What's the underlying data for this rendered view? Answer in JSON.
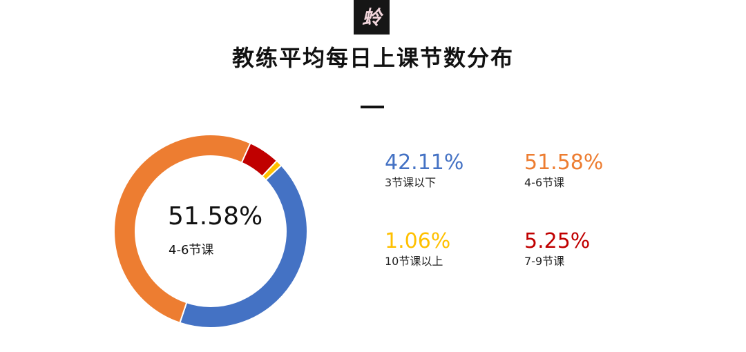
{
  "title": "教练平均每日上课节数分布",
  "logo": {
    "icon": "brush-calligraphy-logo-icon",
    "glyph": "蛉",
    "background": "#161616",
    "glyph_color": "#f2d6dc"
  },
  "center": {
    "percent": "51.58%",
    "label": "4-6节课"
  },
  "legend": [
    {
      "percent": "42.11%",
      "label": "3节课以下",
      "color": "#4472C4"
    },
    {
      "percent": "51.58%",
      "label": "4-6节课",
      "color": "#ED7D31"
    },
    {
      "percent": "1.06%",
      "label": "10节课以上",
      "color": "#FFC000"
    },
    {
      "percent": "5.25%",
      "label": "7-9节课",
      "color": "#C00000"
    }
  ],
  "chart_data": {
    "type": "pie",
    "variant": "donut",
    "title": "教练平均每日上课节数分布",
    "slices": [
      {
        "name": "3节课以下",
        "value": 42.11,
        "color": "#4472C4"
      },
      {
        "name": "4-6节课",
        "value": 51.58,
        "color": "#ED7D31"
      },
      {
        "name": "7-9节课",
        "value": 5.25,
        "color": "#C00000"
      },
      {
        "name": "10节课以上",
        "value": 1.06,
        "color": "#FFC000"
      }
    ],
    "highlighted": "4-6节课",
    "legend_position": "right"
  }
}
